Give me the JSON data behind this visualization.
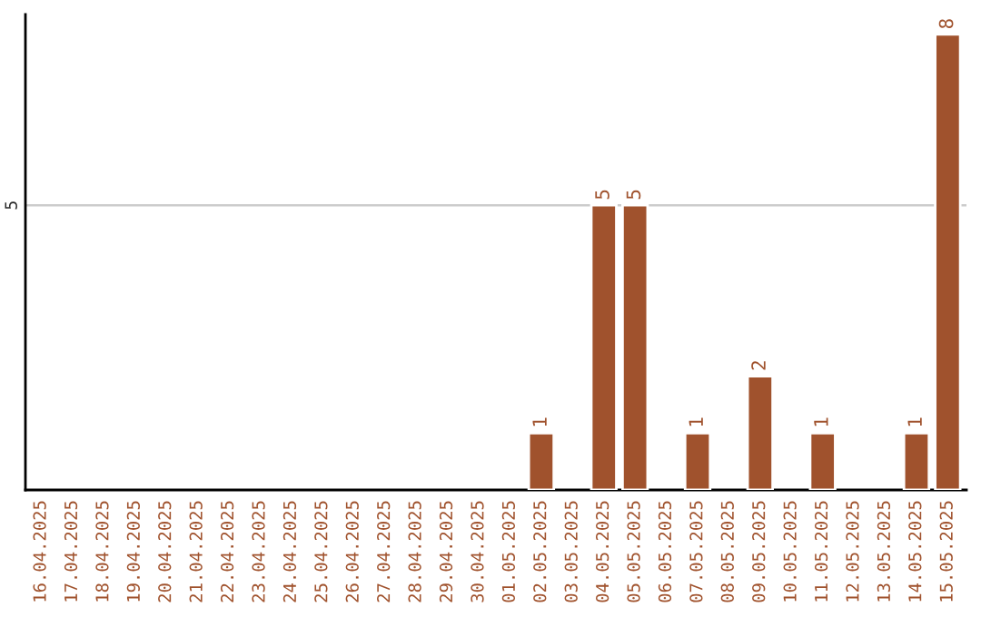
{
  "chart_data": {
    "type": "bar",
    "categories": [
      "16.04.2025",
      "17.04.2025",
      "18.04.2025",
      "19.04.2025",
      "20.04.2025",
      "21.04.2025",
      "22.04.2025",
      "23.04.2025",
      "24.04.2025",
      "25.04.2025",
      "26.04.2025",
      "27.04.2025",
      "28.04.2025",
      "29.04.2025",
      "30.04.2025",
      "01.05.2025",
      "02.05.2025",
      "03.05.2025",
      "04.05.2025",
      "05.05.2025",
      "06.05.2025",
      "07.05.2025",
      "08.05.2025",
      "09.05.2025",
      "10.05.2025",
      "11.05.2025",
      "12.05.2025",
      "13.05.2025",
      "14.05.2025",
      "15.05.2025"
    ],
    "values": [
      null,
      null,
      null,
      null,
      null,
      null,
      null,
      null,
      null,
      null,
      null,
      null,
      null,
      null,
      null,
      null,
      1,
      null,
      5,
      5,
      null,
      1,
      null,
      2,
      null,
      1,
      null,
      null,
      1,
      8
    ],
    "value_labels": [
      null,
      null,
      null,
      null,
      null,
      null,
      null,
      null,
      null,
      null,
      null,
      null,
      null,
      null,
      null,
      null,
      "1",
      null,
      "5",
      "5",
      null,
      "1",
      null,
      "2",
      null,
      "1",
      null,
      null,
      "1",
      "8"
    ],
    "color": "#a0522d",
    "ylim": [
      0,
      8.35
    ],
    "yticks": [
      5
    ],
    "grid": "y",
    "legend": false
  }
}
